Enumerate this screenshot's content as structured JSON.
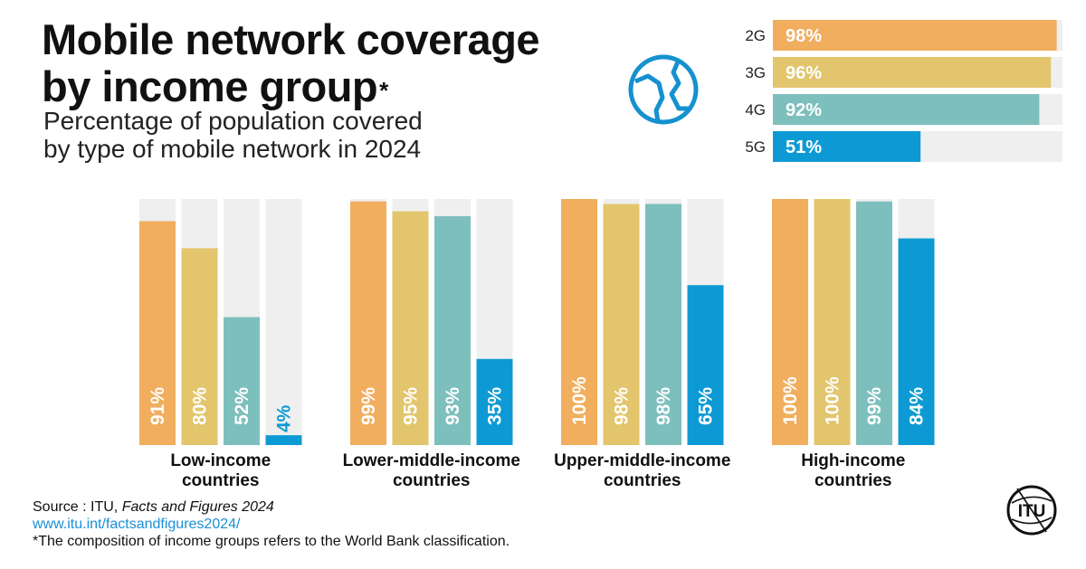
{
  "header": {
    "title_line1": "Mobile network coverage",
    "title_line2": "by income group",
    "title_mark": "*",
    "subtitle_line1": "Percentage of population covered",
    "subtitle_line2": "by type of mobile network in 2024"
  },
  "colors": {
    "2G": "#f0ae5e",
    "3G": "#e2c56c",
    "4G": "#7dbfbd",
    "5G": "#0d9ad4",
    "track": "#efefef"
  },
  "icons": [
    "globe-icon",
    "itu-logo-icon"
  ],
  "chart_data": [
    {
      "type": "bar",
      "orientation": "horizontal",
      "categories": [
        "2G",
        "3G",
        "4G",
        "5G"
      ],
      "values": [
        98,
        96,
        92,
        51
      ],
      "value_labels": [
        "98%",
        "96%",
        "92%",
        "51%"
      ],
      "xlim": [
        0,
        100
      ]
    },
    {
      "type": "bar",
      "orientation": "vertical",
      "categories": [
        {
          "line1": "Low-income",
          "line2": "countries"
        },
        {
          "line1": "Lower-middle-income",
          "line2": "countries"
        },
        {
          "line1": "Upper-middle-income",
          "line2": "countries"
        },
        {
          "line1": "High-income",
          "line2": "countries"
        }
      ],
      "series": [
        {
          "name": "2G",
          "values": [
            91,
            99,
            100,
            100
          ],
          "labels": [
            "91%",
            "99%",
            "100%",
            "100%"
          ]
        },
        {
          "name": "3G",
          "values": [
            80,
            95,
            98,
            100
          ],
          "labels": [
            "80%",
            "95%",
            "98%",
            "100%"
          ]
        },
        {
          "name": "4G",
          "values": [
            52,
            93,
            98,
            99
          ],
          "labels": [
            "52%",
            "93%",
            "98%",
            "99%"
          ]
        },
        {
          "name": "5G",
          "values": [
            4,
            35,
            65,
            84
          ],
          "labels": [
            "4%",
            "35%",
            "65%",
            "84%"
          ]
        }
      ],
      "ylim": [
        0,
        100
      ]
    }
  ],
  "footer": {
    "source_prefix": "Source : ITU, ",
    "source_title": "Facts and Figures 2024",
    "url": "www.itu.int/factsandfigures2024/",
    "note": "*The composition of income groups refers to the World Bank classification."
  },
  "logo": {
    "text": "ITU"
  }
}
